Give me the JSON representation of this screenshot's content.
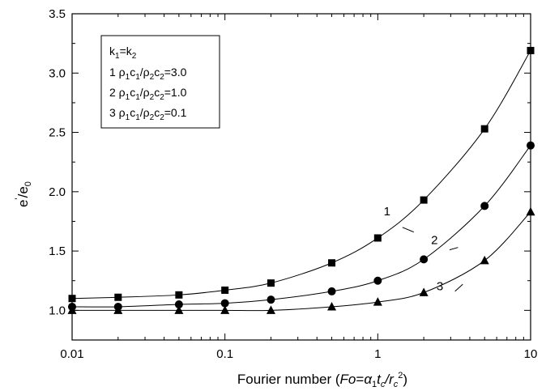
{
  "chart_data": {
    "type": "line",
    "x_scale": "log",
    "xlim": [
      0.01,
      10
    ],
    "ylim": [
      0.75,
      3.5
    ],
    "grid": false,
    "legend_position": "top-left",
    "xlabel": "Fourier number (Fo=α1tc/rc2)",
    "ylabel": "e'/e0",
    "x_ticks": [
      "0.01",
      "0.1",
      "1",
      "10"
    ],
    "y_ticks": [
      "1.0",
      "1.5",
      "2.0",
      "2.5",
      "3.0",
      "3.5"
    ],
    "x": [
      0.01,
      0.02,
      0.05,
      0.1,
      0.2,
      0.5,
      1,
      2,
      5,
      10
    ],
    "legend": {
      "header": "k1=k2",
      "entries": [
        "1 ρ1c1/ρ2c2=3.0",
        "2 ρ1c1/ρ2c2=1.0",
        "3 ρ1c1/ρ2c2=0.1"
      ]
    },
    "series": [
      {
        "name": "1",
        "ratio": "3.0",
        "marker": "square",
        "values": [
          1.1,
          1.11,
          1.13,
          1.17,
          1.23,
          1.4,
          1.61,
          1.93,
          2.53,
          3.19
        ]
      },
      {
        "name": "2",
        "ratio": "1.0",
        "marker": "circle",
        "values": [
          1.03,
          1.03,
          1.05,
          1.06,
          1.09,
          1.16,
          1.25,
          1.43,
          1.88,
          2.39
        ]
      },
      {
        "name": "3",
        "ratio": "0.1",
        "marker": "triangle",
        "values": [
          1.0,
          1.0,
          1.0,
          1.0,
          1.0,
          1.03,
          1.07,
          1.15,
          1.42,
          1.83
        ]
      }
    ]
  }
}
